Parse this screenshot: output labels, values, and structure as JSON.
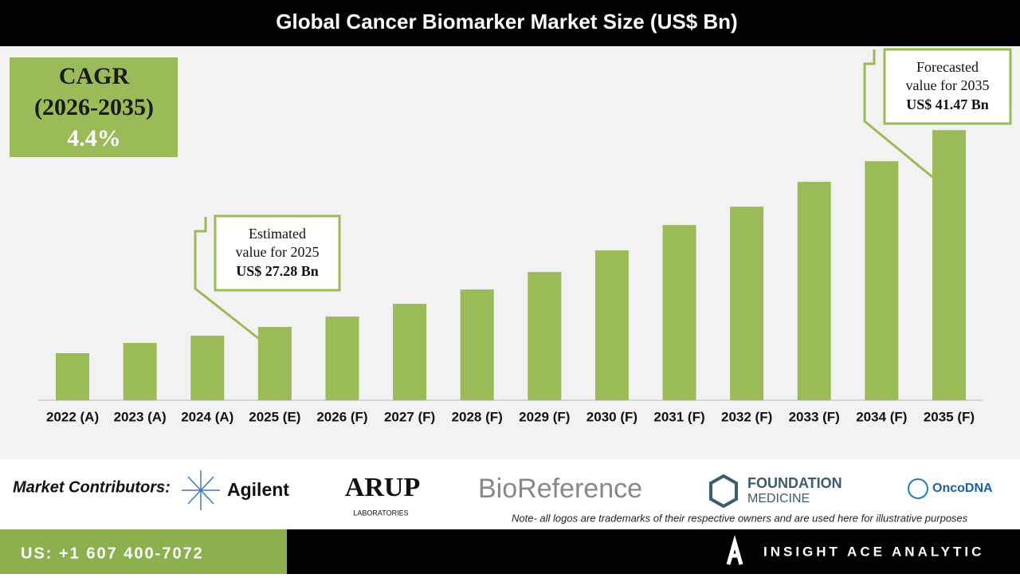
{
  "chart_data": {
    "type": "bar",
    "title": "Global Cancer Biomarker Market Size (US$ Bn)",
    "categories": [
      "2022 (A)",
      "2023 (A)",
      "2024 (A)",
      "2025 (E)",
      "2026 (F)",
      "2027 (F)",
      "2028 (F)",
      "2029 (F)",
      "2030 (F)",
      "2031 (F)",
      "2032 (F)",
      "2033 (F)",
      "2034 (F)",
      "2035 (F)"
    ],
    "values": [
      25.39,
      26.13,
      26.65,
      27.28,
      28.03,
      28.95,
      29.98,
      31.24,
      32.8,
      34.63,
      35.95,
      37.74,
      39.23,
      41.47
    ],
    "color": "#9bbb59",
    "ylim": [
      22,
      47
    ],
    "annotations": [
      {
        "lines": [
          "Estimated",
          "value for 2025",
          "US$ 27.28 Bn"
        ]
      },
      {
        "lines": [
          "Forecasted",
          "value for 2035",
          "US$ 41.47 Bn"
        ]
      }
    ],
    "cagr": {
      "label": "CAGR",
      "period": "(2026-2035)",
      "value": "4.4%"
    }
  },
  "footer": {
    "contributors_label": "Market Contributors:",
    "logos": [
      "Agilent",
      "ARUP",
      "LABORATORIES",
      "BioReference",
      "FOUNDATION",
      "MEDICINE",
      "OncoDNA"
    ],
    "note": "Note- all logos are trademarks of their respective owners and are used here for illustrative purposes",
    "phone": "US: +1 607 400-7072",
    "brand": "INSIGHT ACE ANALYTIC"
  }
}
